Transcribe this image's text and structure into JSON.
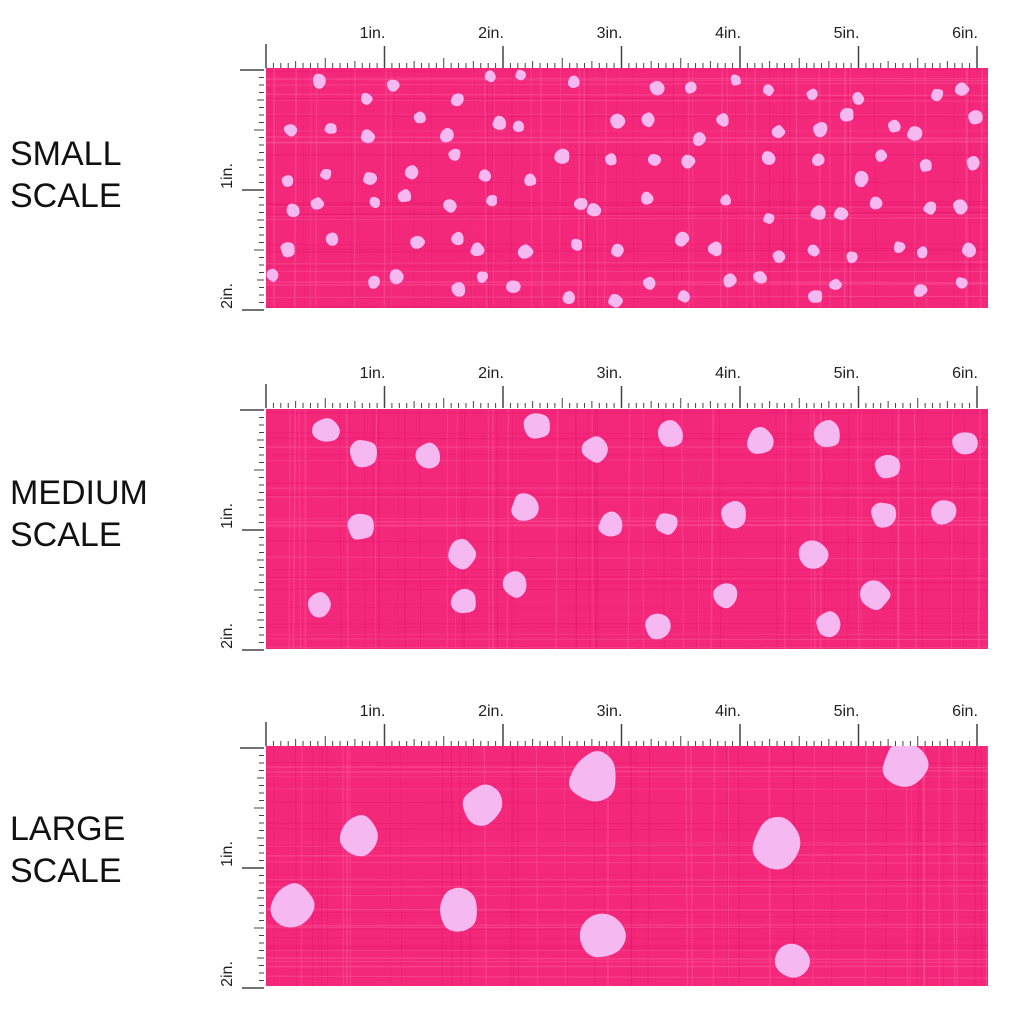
{
  "colors": {
    "fabric": "#f4287b",
    "fabric_dark": "#e11466",
    "dot": "#f6b8f0",
    "ruler": "#444444"
  },
  "ruler": {
    "horizontal_labels": [
      "1in.",
      "2in.",
      "3in.",
      "4in.",
      "5in.",
      "6in."
    ],
    "vertical_labels": [
      "1in.",
      "2in."
    ]
  },
  "scales": [
    {
      "label_line1": "SMALL",
      "label_line2": "SCALE",
      "pattern": "pink-polka-dots"
    },
    {
      "label_line1": "MEDIUM",
      "label_line2": "SCALE",
      "pattern": "pink-polka-dots"
    },
    {
      "label_line1": "LARGE",
      "label_line2": "SCALE",
      "pattern": "pink-polka-dots"
    }
  ]
}
